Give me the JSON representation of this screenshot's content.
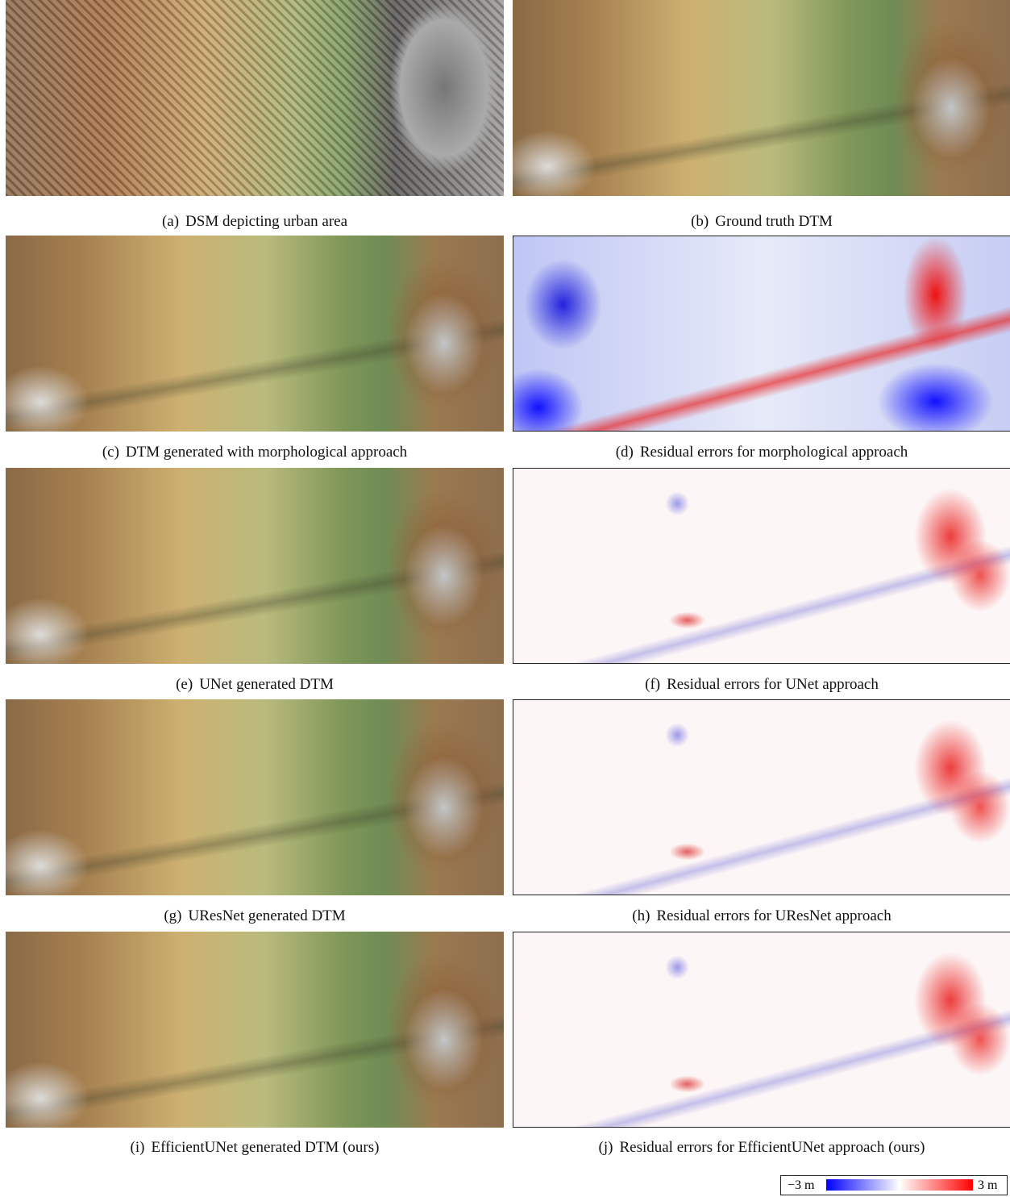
{
  "panels": [
    {
      "label": "(a)",
      "caption": "DSM depicting urban area"
    },
    {
      "label": "(b)",
      "caption": "Ground truth DTM"
    },
    {
      "label": "(c)",
      "caption": "DTM generated with morphological approach"
    },
    {
      "label": "(d)",
      "caption": "Residual errors for morphological approach"
    },
    {
      "label": "(e)",
      "caption": "UNet generated DTM"
    },
    {
      "label": "(f)",
      "caption": "Residual errors for UNet approach"
    },
    {
      "label": "(g)",
      "caption": "UResNet generated DTM"
    },
    {
      "label": "(h)",
      "caption": "Residual errors for UResNet approach"
    },
    {
      "label": "(i)",
      "caption": "EfficientUNet generated DTM (ours)"
    },
    {
      "label": "(j)",
      "caption": "Residual errors for EfficientUNet approach (ours)"
    }
  ],
  "colorbar": {
    "min_label": "−3 m",
    "max_label": "3 m"
  }
}
